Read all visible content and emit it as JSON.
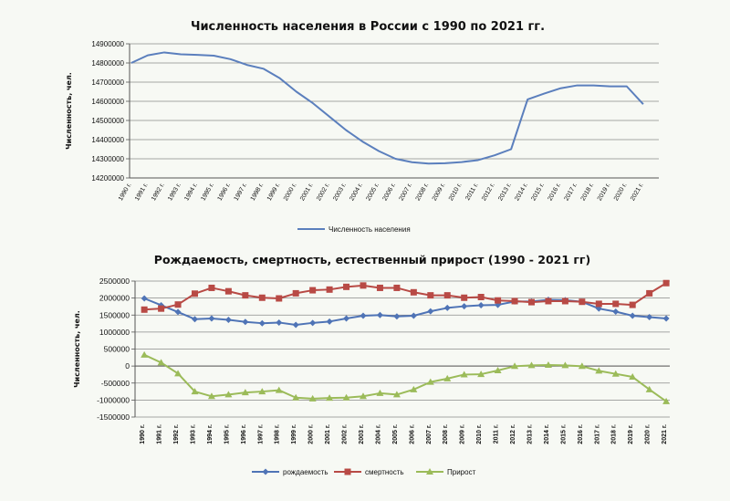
{
  "chart_data": [
    {
      "type": "line",
      "title": "Численность населения в России с 1990 по 2021 гг.",
      "ylabel": "Численность, чел.",
      "xlabel": "",
      "x": [
        "1990 г.",
        "1991 г.",
        "1992 г.",
        "1993 г.",
        "1994 г.",
        "1995 г.",
        "1996 г.",
        "1997 г.",
        "1998 г.",
        "1999 г.",
        "2000 г.",
        "2001 г.",
        "2002 г.",
        "2003 г.",
        "2004 г.",
        "2005 г.",
        "2006 г.",
        "2007 г.",
        "2008 г.",
        "2009 г.",
        "2010 г.",
        "2011 г.",
        "2012 г.",
        "2013 г.",
        "2014 г.",
        "2015 г.",
        "2016 г.",
        "2017 г.",
        "2018 г.",
        "2019 г.",
        "2020 г.",
        "2021 г."
      ],
      "yticks": [
        "14900000",
        "14800000",
        "14700000",
        "14600000",
        "14500000",
        "14400000",
        "14300000",
        "14200000"
      ],
      "ylim": [
        14200000,
        14900000
      ],
      "grid": true,
      "legend_position": "bottom",
      "series": [
        {
          "name": "Численность населения",
          "color": "#5b7fbd",
          "values": [
            14800000,
            14840000,
            14855000,
            14845000,
            14842000,
            14838000,
            14820000,
            14790000,
            14770000,
            14720000,
            14650000,
            14590000,
            14520000,
            14450000,
            14390000,
            14340000,
            14300000,
            14282000,
            14275000,
            14277000,
            14283000,
            14293000,
            14318000,
            14350000,
            14610000,
            14640000,
            14668000,
            14683000,
            14683000,
            14678000,
            14678000,
            14585000
          ]
        }
      ]
    },
    {
      "type": "line",
      "title": "Рождаемость, смертность, естественный прирост (1990 - 2021 гг)",
      "ylabel": "Численность, чел.",
      "xlabel": "",
      "x": [
        "1990 г.",
        "1991 г.",
        "1992 г.",
        "1993 г.",
        "1994 г.",
        "1995 г.",
        "1996 г.",
        "1997 г.",
        "1998 г.",
        "1999 г.",
        "2000 г.",
        "2001 г.",
        "2002 г.",
        "2003 г.",
        "2004 г.",
        "2005 г.",
        "2006 г.",
        "2007 г.",
        "2008 г.",
        "2009 г.",
        "2010 г.",
        "2011 г.",
        "2012 г.",
        "2013 г.",
        "2014 г.",
        "2015 г.",
        "2016 г.",
        "2017 г.",
        "2018 г.",
        "2019 г.",
        "2020 г.",
        "2021 г."
      ],
      "yticks": [
        "2500000",
        "2000000",
        "1500000",
        "1000000",
        "500000",
        "0",
        "-500000",
        "-1000000",
        "-1500000"
      ],
      "ylim": [
        -1500000,
        2500000
      ],
      "grid": true,
      "legend_position": "bottom",
      "series": [
        {
          "name": "рождаемость",
          "color": "#4f74b6",
          "marker": "diamond",
          "values": [
            1990000,
            1790000,
            1590000,
            1380000,
            1400000,
            1360000,
            1300000,
            1260000,
            1280000,
            1210000,
            1270000,
            1310000,
            1400000,
            1480000,
            1500000,
            1460000,
            1480000,
            1610000,
            1710000,
            1760000,
            1790000,
            1800000,
            1900000,
            1900000,
            1950000,
            1940000,
            1890000,
            1690000,
            1600000,
            1480000,
            1440000,
            1400000
          ]
        },
        {
          "name": "смертность",
          "color": "#b84a45",
          "marker": "square",
          "values": [
            1660000,
            1690000,
            1810000,
            2130000,
            2300000,
            2200000,
            2080000,
            2010000,
            1990000,
            2140000,
            2230000,
            2250000,
            2330000,
            2370000,
            2300000,
            2300000,
            2170000,
            2080000,
            2080000,
            2010000,
            2030000,
            1930000,
            1910000,
            1880000,
            1910000,
            1910000,
            1890000,
            1830000,
            1830000,
            1800000,
            2140000,
            2440000
          ]
        },
        {
          "name": "Прирост",
          "color": "#9bbb59",
          "marker": "triangle",
          "values": [
            330000,
            100000,
            -220000,
            -750000,
            -890000,
            -840000,
            -780000,
            -750000,
            -710000,
            -930000,
            -960000,
            -940000,
            -930000,
            -890000,
            -800000,
            -840000,
            -690000,
            -470000,
            -370000,
            -250000,
            -240000,
            -130000,
            -5000,
            20000,
            30000,
            20000,
            -5000,
            -140000,
            -230000,
            -320000,
            -690000,
            -1040000
          ]
        }
      ]
    }
  ]
}
